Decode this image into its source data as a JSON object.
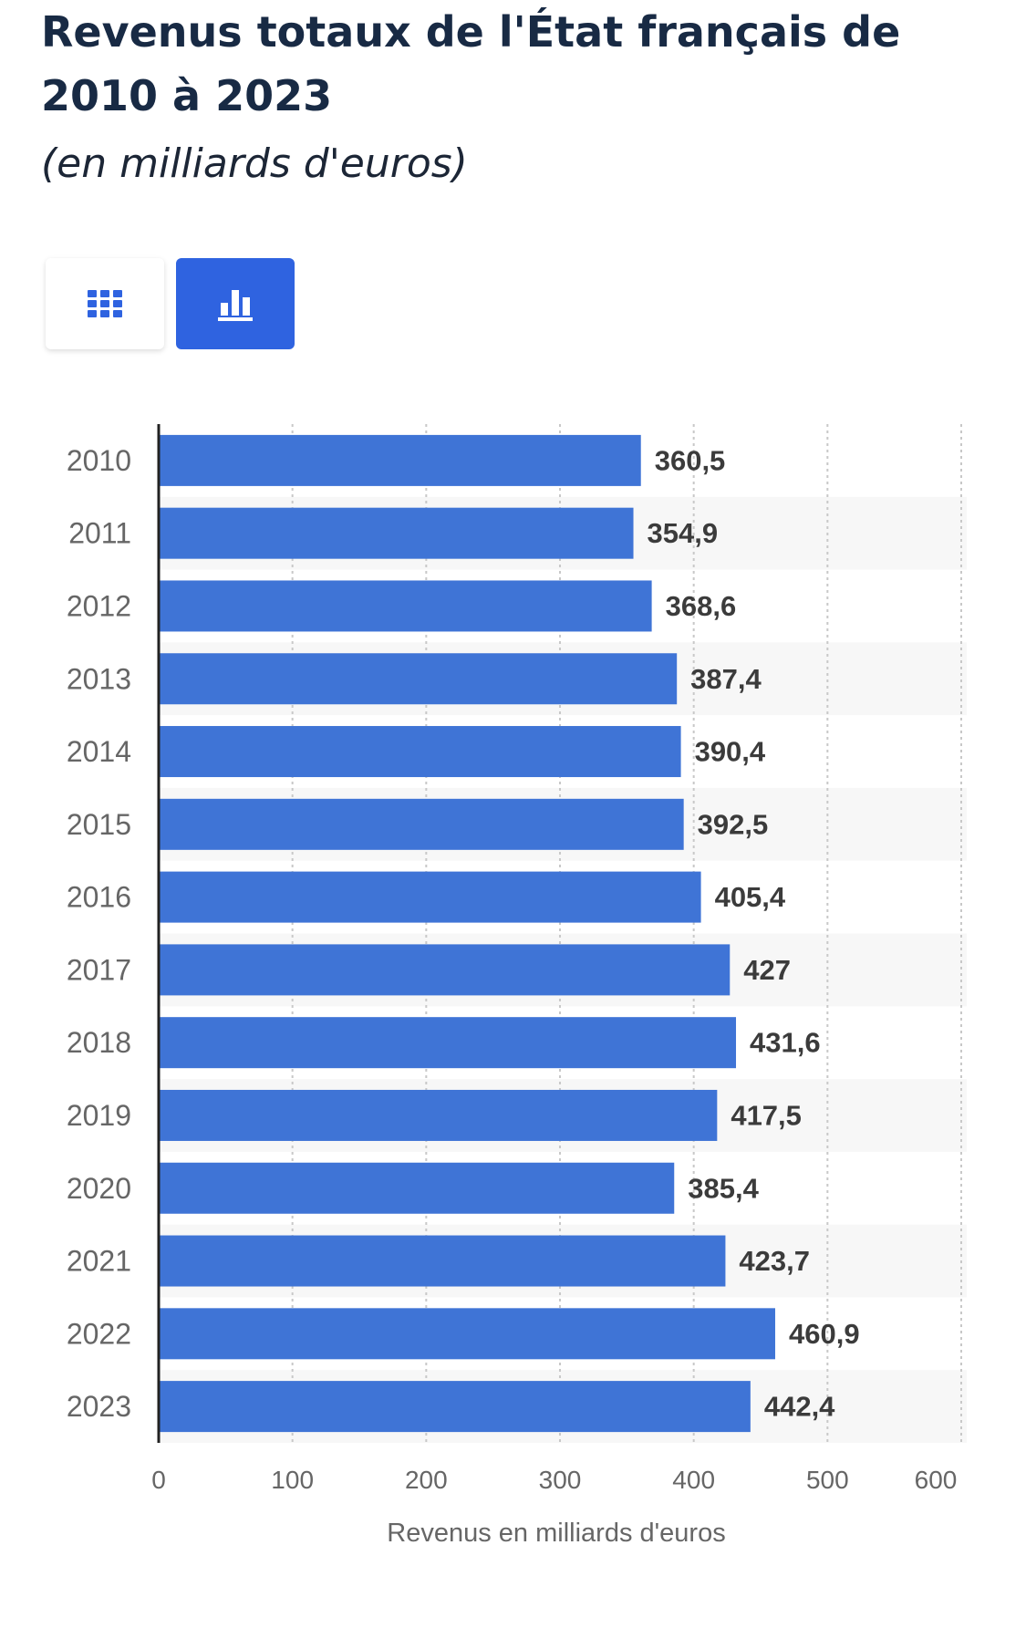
{
  "header": {
    "title": "Revenus totaux de l'État français de 2010 à 2023",
    "subtitle": "(en milliards d'euros)"
  },
  "view_toggle": {
    "table_icon": "table-grid-icon",
    "chart_icon": "bar-chart-icon",
    "selected": "chart"
  },
  "colors": {
    "bar": "#3f74d6",
    "accent": "#2f63e0",
    "stripe": "#f7f7f7",
    "value_label": "#3b3b3b",
    "tick_label": "#666666"
  },
  "chart_data": {
    "type": "bar",
    "orientation": "horizontal",
    "categories": [
      "2010",
      "2011",
      "2012",
      "2013",
      "2014",
      "2015",
      "2016",
      "2017",
      "2018",
      "2019",
      "2020",
      "2021",
      "2022",
      "2023"
    ],
    "values": [
      360.5,
      354.9,
      368.6,
      387.4,
      390.4,
      392.5,
      405.4,
      427,
      431.6,
      417.5,
      385.4,
      423.7,
      460.9,
      442.4
    ],
    "value_labels": [
      "360,5",
      "354,9",
      "368,6",
      "387,4",
      "390,4",
      "392,5",
      "405,4",
      "427",
      "431,6",
      "417,5",
      "385,4",
      "423,7",
      "460,9",
      "442,4"
    ],
    "xlabel": "Revenus en milliards d'euros",
    "ylabel": "",
    "xlim": [
      0,
      600
    ],
    "xticks": [
      "0",
      "100",
      "200",
      "300",
      "400",
      "500",
      "600"
    ],
    "grid": true
  }
}
